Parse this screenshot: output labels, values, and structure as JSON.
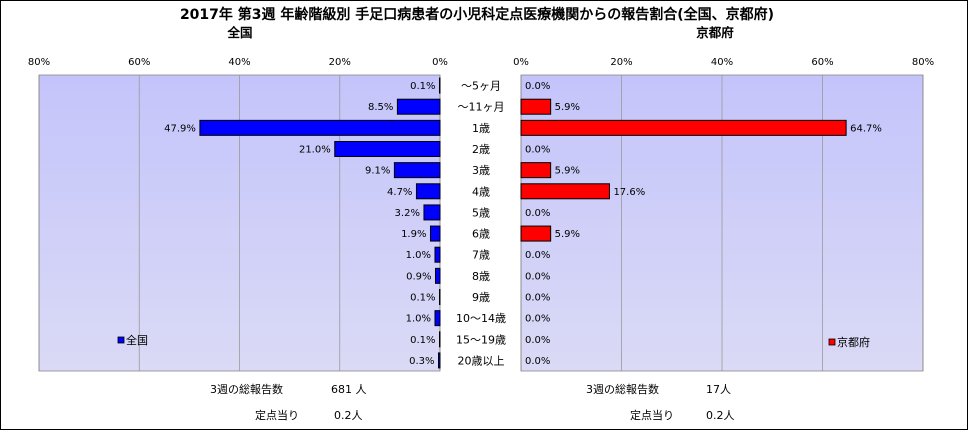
{
  "chart_data": {
    "type": "bar",
    "title": "2017年 第3週 年齢階級別 手足口病患者の小児科定点医療機関からの報告割合(全国、京都府)",
    "categories": [
      "～5ヶ月",
      "～11ヶ月",
      "1歳",
      "2歳",
      "3歳",
      "4歳",
      "5歳",
      "6歳",
      "7歳",
      "8歳",
      "9歳",
      "10～14歳",
      "15～19歳",
      "20歳以上"
    ],
    "xlim": [
      0,
      80
    ],
    "ticks": [
      "80%",
      "60%",
      "40%",
      "20%",
      "0%"
    ],
    "ticks_right": [
      "0%",
      "20%",
      "40%",
      "60%",
      "80%"
    ],
    "grid": true,
    "panels": [
      {
        "name": "全国",
        "values": [
          0.1,
          8.5,
          47.9,
          21.0,
          9.1,
          4.7,
          3.2,
          1.9,
          1.0,
          0.9,
          0.1,
          1.0,
          0.1,
          0.3
        ],
        "labels": [
          "0.1%",
          "8.5%",
          "47.9%",
          "21.0%",
          "9.1%",
          "4.7%",
          "3.2%",
          "1.9%",
          "1.0%",
          "0.9%",
          "0.1%",
          "1.0%",
          "0.1%",
          "0.3%"
        ],
        "color": "#0000ff",
        "legend": "全国",
        "legend_position": "bottom-left",
        "direction": "left"
      },
      {
        "name": "京都府",
        "values": [
          0.0,
          5.9,
          64.7,
          0.0,
          5.9,
          17.6,
          0.0,
          5.9,
          0.0,
          0.0,
          0.0,
          0.0,
          0.0,
          0.0
        ],
        "labels": [
          "0.0%",
          "5.9%",
          "64.7%",
          "0.0%",
          "5.9%",
          "17.6%",
          "0.0%",
          "5.9%",
          "0.0%",
          "0.0%",
          "0.0%",
          "0.0%",
          "0.0%",
          "0.0%"
        ],
        "color": "#ff0000",
        "legend": "京都府",
        "legend_position": "bottom-right",
        "direction": "right"
      }
    ],
    "plot_background": "#c8c8f8"
  },
  "summary": {
    "national": {
      "total_label": "3週の総報告数",
      "total_value": "681 人",
      "per_label": "定点当り",
      "per_value": "0.2人"
    },
    "kyoto": {
      "total_label": "3週の総報告数",
      "total_value": "17人",
      "per_label": "定点当り",
      "per_value": "0.2人"
    }
  }
}
